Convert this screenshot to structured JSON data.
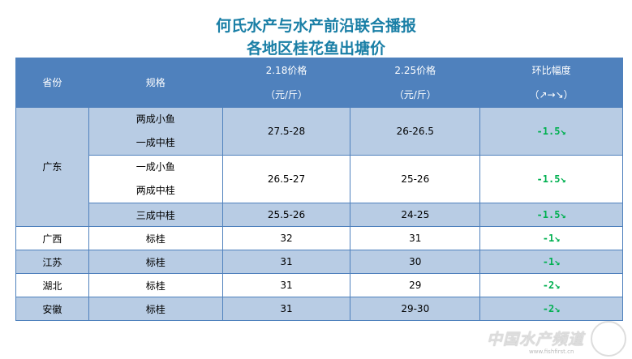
{
  "title": [
    "何氏水产与水产前沿联合播报",
    "各地区桂花鱼出塘价"
  ],
  "headers": {
    "province": "省份",
    "spec": "规格",
    "p1": "2.18价格",
    "p1u": "（元/斤）",
    "p2": "2.25价格",
    "p2u": "（元/斤）",
    "chg": "环比幅度",
    "chgu": "（↗→↘）"
  },
  "rows": [
    {
      "province": "广东",
      "spec": [
        "两成小鱼",
        "一成中桂"
      ],
      "p1": "27.5-28",
      "p2": "26-26.5",
      "chg": "-1.5↘"
    },
    {
      "spec": [
        "一成小鱼",
        "两成中桂"
      ],
      "p1": "26.5-27",
      "p2": "25-26",
      "chg": "-1.5↘"
    },
    {
      "spec": [
        "三成中桂"
      ],
      "p1": "25.5-26",
      "p2": "24-25",
      "chg": "-1.5↘"
    },
    {
      "province": "广西",
      "spec": [
        "标桂"
      ],
      "p1": "32",
      "p2": "31",
      "chg": "-1↘"
    },
    {
      "province": "江苏",
      "spec": [
        "标桂"
      ],
      "p1": "31",
      "p2": "30",
      "chg": "-1↘"
    },
    {
      "province": "湖北",
      "spec": [
        "标桂"
      ],
      "p1": "31",
      "p2": "29",
      "chg": "-2↘"
    },
    {
      "province": "安徽",
      "spec": [
        "标桂"
      ],
      "p1": "31",
      "p2": "29-30",
      "chg": "-2↘"
    }
  ],
  "watermark": {
    "name": "中国水产频道",
    "url": "www.fishfirst.cn"
  },
  "colors": {
    "header": "#4f81bd",
    "band": "#b8cce4",
    "title": "#1a7fa6",
    "down": "#00b050"
  }
}
